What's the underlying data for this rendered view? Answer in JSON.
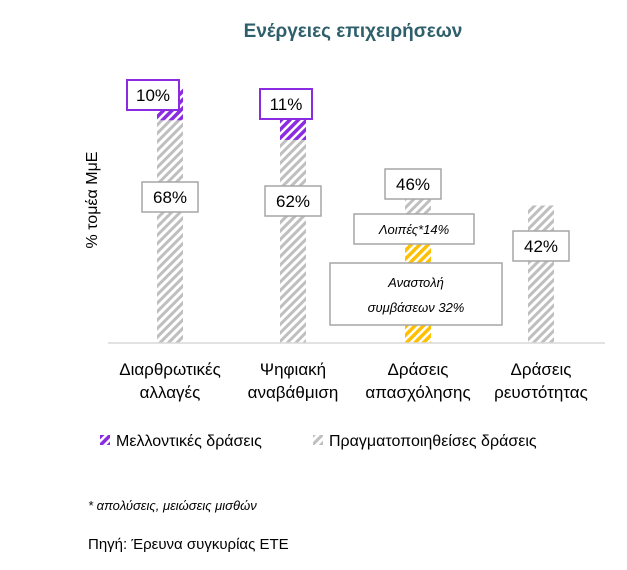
{
  "chart_data": {
    "type": "bar",
    "title": "Ενέργειες επιχειρήσεων",
    "ylabel": "% τομέα ΜμΕ",
    "xlabel": "",
    "ylim": [
      0,
      80
    ],
    "categories": [
      [
        "Διαρθρωτικές",
        "αλλαγές"
      ],
      [
        "Ψηφιακή",
        "αναβάθμιση"
      ],
      [
        "Δράσεις",
        "απασχόλησης"
      ],
      [
        "Δράσεις",
        "ρευστότητας"
      ]
    ],
    "series": [
      {
        "name": "Πραγματοποιηθείσες δράσεις",
        "values": [
          68,
          62,
          46,
          42
        ],
        "labels": [
          "68%",
          "62%",
          "46%",
          "42%"
        ]
      },
      {
        "name": "Μελλοντικές δράσεις",
        "values": [
          10,
          11,
          null,
          null
        ],
        "labels": [
          "10%",
          "11%",
          "",
          ""
        ]
      }
    ],
    "breakdown": {
      "category_index": 2,
      "segments": [
        {
          "value": 32,
          "label": [
            "Αναστολή",
            "συμβάσεων 32%"
          ]
        },
        {
          "value": 14,
          "label": [
            "Λοιπές*14%"
          ]
        }
      ]
    },
    "stacked": true,
    "grid": false,
    "legend_position": "bottom"
  },
  "colors": {
    "title": "#2e5f6b",
    "done_hatch": "#bfbfbf",
    "future_hatch": "#8a2be2",
    "suspension_hatch": "#ffc000",
    "label_border_done": "#a6a6a6",
    "label_border_future": "#8a2be2"
  },
  "footnote": "* απολύσεις, μειώσεις μισθών",
  "source": "Πηγή: Έρευνα συγκυρίας ΕΤΕ"
}
